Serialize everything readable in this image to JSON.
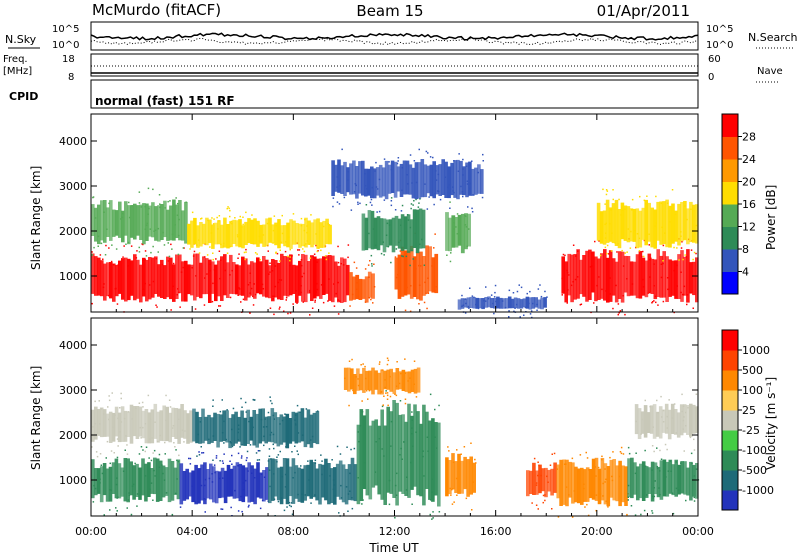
{
  "header": {
    "station": "McMurdo (fitACF)",
    "beam": "Beam 15",
    "date": "01/Apr/2011"
  },
  "status_panels": {
    "nsky_label": "N.Sky",
    "nsearch_label": "N.Search",
    "freq_label_1": "Freq.",
    "freq_label_2": "[MHz]",
    "nave_label": "Nave",
    "cpid_label": "CPID",
    "noise_ticks_left": [
      "10^5",
      "10^0"
    ],
    "noise_ticks_right": [
      "10^5",
      "10^0"
    ],
    "freq_ticks_left": [
      "18",
      "8"
    ],
    "nave_ticks_right": [
      "60",
      "0"
    ],
    "cpid_text": "normal (fast) 151 RF"
  },
  "colors": {
    "power_scale": [
      "#0000ff",
      "#3355bb",
      "#2e8b57",
      "#55aa55",
      "#ffdd00",
      "#ff9900",
      "#ff5500",
      "#ff0000"
    ],
    "velocity_scale": [
      "#2233bb",
      "#1e6a78",
      "#2e8b57",
      "#44cc44",
      "#c8c8b8",
      "#ffcc55",
      "#ff8800",
      "#ff4400",
      "#ff0000"
    ]
  },
  "chart_data": [
    {
      "type": "heatmap",
      "name": "power",
      "ylabel": "Slant Range [km]",
      "xlabel": "Time UT",
      "x_ticks": [
        "00:00",
        "04:00",
        "08:00",
        "12:00",
        "16:00",
        "20:00",
        "00:00"
      ],
      "y_ticks": [
        1000,
        2000,
        3000,
        4000
      ],
      "ylim": [
        200,
        4600
      ],
      "colorbar_label": "Power [dB]",
      "colorbar_ticks": [
        4,
        8,
        12,
        16,
        20,
        24,
        28
      ],
      "blobs": [
        {
          "t0": 0.0,
          "t1": 10.2,
          "r0": 400,
          "r1": 1500,
          "level": 7
        },
        {
          "t0": 10.2,
          "t1": 11.2,
          "r0": 400,
          "r1": 1100,
          "level": 6
        },
        {
          "t0": 12.0,
          "t1": 13.7,
          "r0": 450,
          "r1": 1700,
          "level": 6
        },
        {
          "t0": 18.6,
          "t1": 24.0,
          "r0": 400,
          "r1": 1600,
          "level": 7
        },
        {
          "t0": 0.0,
          "t1": 3.8,
          "r0": 1700,
          "r1": 2700,
          "level": 3
        },
        {
          "t0": 3.8,
          "t1": 9.5,
          "r0": 1600,
          "r1": 2300,
          "level": 4
        },
        {
          "t0": 10.7,
          "t1": 13.2,
          "r0": 1500,
          "r1": 2500,
          "level": 2
        },
        {
          "t0": 14.0,
          "t1": 15.0,
          "r0": 1500,
          "r1": 2500,
          "level": 3
        },
        {
          "t0": 20.0,
          "t1": 24.0,
          "r0": 1600,
          "r1": 2700,
          "level": 4
        },
        {
          "t0": 9.5,
          "t1": 15.5,
          "r0": 2700,
          "r1": 3600,
          "level": 1
        },
        {
          "t0": 14.5,
          "t1": 18.0,
          "r0": 250,
          "r1": 550,
          "level": 1
        }
      ]
    },
    {
      "type": "heatmap",
      "name": "velocity",
      "ylabel": "Slant Range [km]",
      "xlabel": "Time UT",
      "x_ticks": [
        "00:00",
        "04:00",
        "08:00",
        "12:00",
        "16:00",
        "20:00",
        "00:00"
      ],
      "y_ticks": [
        1000,
        2000,
        3000,
        4000
      ],
      "ylim": [
        200,
        4600
      ],
      "colorbar_label": "Velocity [m s⁻¹]",
      "colorbar_ticks": [
        1000,
        500,
        100,
        25,
        -25,
        -100,
        -500,
        -1000
      ],
      "blobs": [
        {
          "t0": 0.0,
          "t1": 3.5,
          "r0": 500,
          "r1": 1500,
          "level": 2
        },
        {
          "t0": 3.5,
          "t1": 7.0,
          "r0": 450,
          "r1": 1400,
          "level": 0
        },
        {
          "t0": 7.0,
          "t1": 10.5,
          "r0": 450,
          "r1": 1500,
          "level": 1
        },
        {
          "t0": 10.5,
          "t1": 13.8,
          "r0": 400,
          "r1": 2800,
          "level": 2
        },
        {
          "t0": 14.0,
          "t1": 15.2,
          "r0": 600,
          "r1": 1600,
          "level": 6
        },
        {
          "t0": 17.2,
          "t1": 18.4,
          "r0": 600,
          "r1": 1400,
          "level": 7
        },
        {
          "t0": 18.4,
          "t1": 21.2,
          "r0": 400,
          "r1": 1500,
          "level": 6
        },
        {
          "t0": 21.2,
          "t1": 24.0,
          "r0": 500,
          "r1": 1500,
          "level": 2
        },
        {
          "t0": 0.0,
          "t1": 4.0,
          "r0": 1800,
          "r1": 2700,
          "level": 4
        },
        {
          "t0": 4.0,
          "t1": 9.0,
          "r0": 1700,
          "r1": 2600,
          "level": 1
        },
        {
          "t0": 21.5,
          "t1": 24.0,
          "r0": 1900,
          "r1": 2700,
          "level": 4
        },
        {
          "t0": 10.0,
          "t1": 13.0,
          "r0": 2900,
          "r1": 3500,
          "level": 6
        }
      ]
    }
  ]
}
